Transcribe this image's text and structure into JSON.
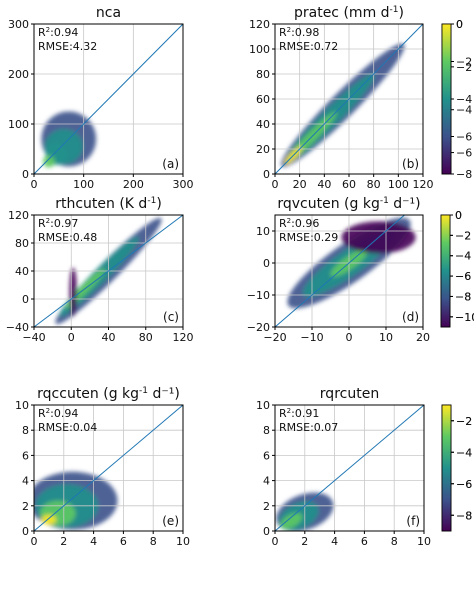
{
  "chart_data": [
    {
      "type": "heatmap",
      "panel": "(a)",
      "title_main": "nca",
      "title_unit": "",
      "title_sup": "",
      "title_tail": "",
      "r2_value": "0.94",
      "rmse_value": "4.32",
      "xlim": [
        0,
        300
      ],
      "ylim": [
        0,
        300
      ],
      "xticks": [
        "0",
        "100",
        "200",
        "300"
      ],
      "yticks": [
        "0",
        "100",
        "200",
        "300"
      ],
      "grid": true,
      "colorbar": {
        "range": [
          -8,
          0
        ],
        "ticks": [
          "0",
          "−2",
          "−4",
          "−6",
          "−8"
        ]
      },
      "reference_line": "1:1",
      "density_shape": "blob concentrated near x 20–110, y 20–130"
    },
    {
      "type": "heatmap",
      "panel": "(b)",
      "title_main": "pratec",
      "title_unit": "(mm d",
      "title_sup": "-1",
      "title_tail": ")",
      "r2_value": "0.98",
      "rmse_value": "0.72",
      "xlim": [
        0,
        120
      ],
      "ylim": [
        0,
        120
      ],
      "xticks": [
        "0",
        "20",
        "40",
        "60",
        "80",
        "100",
        "120"
      ],
      "yticks": [
        "0",
        "20",
        "40",
        "60",
        "80",
        "100",
        "120"
      ],
      "grid": true,
      "colorbar": {
        "range": [
          -7,
          0
        ],
        "ticks": [
          "0",
          "−2",
          "−4",
          "−6"
        ]
      },
      "reference_line": "1:1",
      "density_shape": "narrow band along 1:1 line"
    },
    {
      "type": "heatmap",
      "panel": "(c)",
      "title_main": "rthcuten",
      "title_unit": "(K d",
      "title_sup": "-1",
      "title_tail": ")",
      "r2_value": "0.97",
      "rmse_value": "0.48",
      "xlim": [
        -40,
        120
      ],
      "ylim": [
        -40,
        120
      ],
      "xticks": [
        "−40",
        "0",
        "40",
        "80",
        "120"
      ],
      "yticks": [
        "−40",
        "0",
        "40",
        "80",
        "120"
      ],
      "grid": true,
      "colorbar": {
        "range": [
          -11,
          0
        ],
        "ticks": [
          "0",
          "−2",
          "−4",
          "−6",
          "−8",
          "−10"
        ]
      },
      "reference_line": "1:1",
      "density_shape": "fan from origin along 1:1 line with vertical spread near x=0"
    },
    {
      "type": "heatmap",
      "panel": "(d)",
      "title_main": "rqvcuten",
      "title_unit": "(g kg",
      "title_sup": "-1",
      "title_tail": " d⁻¹)",
      "r2_value": "0.96",
      "rmse_value": "0.29",
      "xlim": [
        -20,
        20
      ],
      "ylim": [
        -20,
        15
      ],
      "xticks": [
        "−20",
        "−10",
        "0",
        "10",
        "20"
      ],
      "yticks": [
        "−20",
        "−10",
        "0",
        "10"
      ],
      "grid": true,
      "colorbar": {
        "range": [
          -11,
          0
        ],
        "ticks": [
          "0",
          "−2",
          "−4",
          "−6",
          "−8",
          "−10"
        ]
      },
      "reference_line": "1:1",
      "density_shape": "diagonal band with wide spread"
    },
    {
      "type": "heatmap",
      "panel": "(e)",
      "title_main": "rqccuten",
      "title_unit": "(g kg",
      "title_sup": "-1",
      "title_tail": " d⁻¹)",
      "r2_value": "0.94",
      "rmse_value": "0.04",
      "xlim": [
        0,
        10
      ],
      "ylim": [
        0,
        10
      ],
      "xticks": [
        "0",
        "2",
        "4",
        "6",
        "8",
        "10"
      ],
      "yticks": [
        "0",
        "2",
        "4",
        "6",
        "8",
        "10"
      ],
      "grid": true,
      "colorbar": {
        "range": [
          -9,
          -1
        ],
        "ticks": [
          "−2",
          "−4",
          "−6",
          "−8"
        ]
      },
      "reference_line": "1:1",
      "density_shape": "blob concentrated near x 0–5, y 0–5"
    },
    {
      "type": "heatmap",
      "panel": "(f)",
      "title_main": "rqrcuten",
      "title_unit": "",
      "title_sup": "",
      "title_tail": "",
      "r2_value": "0.91",
      "rmse_value": "0.07",
      "xlim": [
        0,
        10
      ],
      "ylim": [
        0,
        10
      ],
      "xticks": [
        "0",
        "2",
        "4",
        "6",
        "8",
        "10"
      ],
      "yticks": [
        "0",
        "2",
        "4",
        "6",
        "8",
        "10"
      ],
      "grid": true,
      "colorbar": {
        "range": [
          -9,
          -1
        ],
        "ticks": [
          "−2",
          "−4",
          "−6",
          "−8"
        ]
      },
      "reference_line": "1:1",
      "density_shape": "triangle below 1:1 line, x 0–4, y 0–4"
    }
  ],
  "colormap": [
    "#440154",
    "#3b528b",
    "#21918c",
    "#5ec962",
    "#fde725"
  ],
  "reference_line_color": "#1f77b4",
  "grid_color": "#c8c8c8"
}
